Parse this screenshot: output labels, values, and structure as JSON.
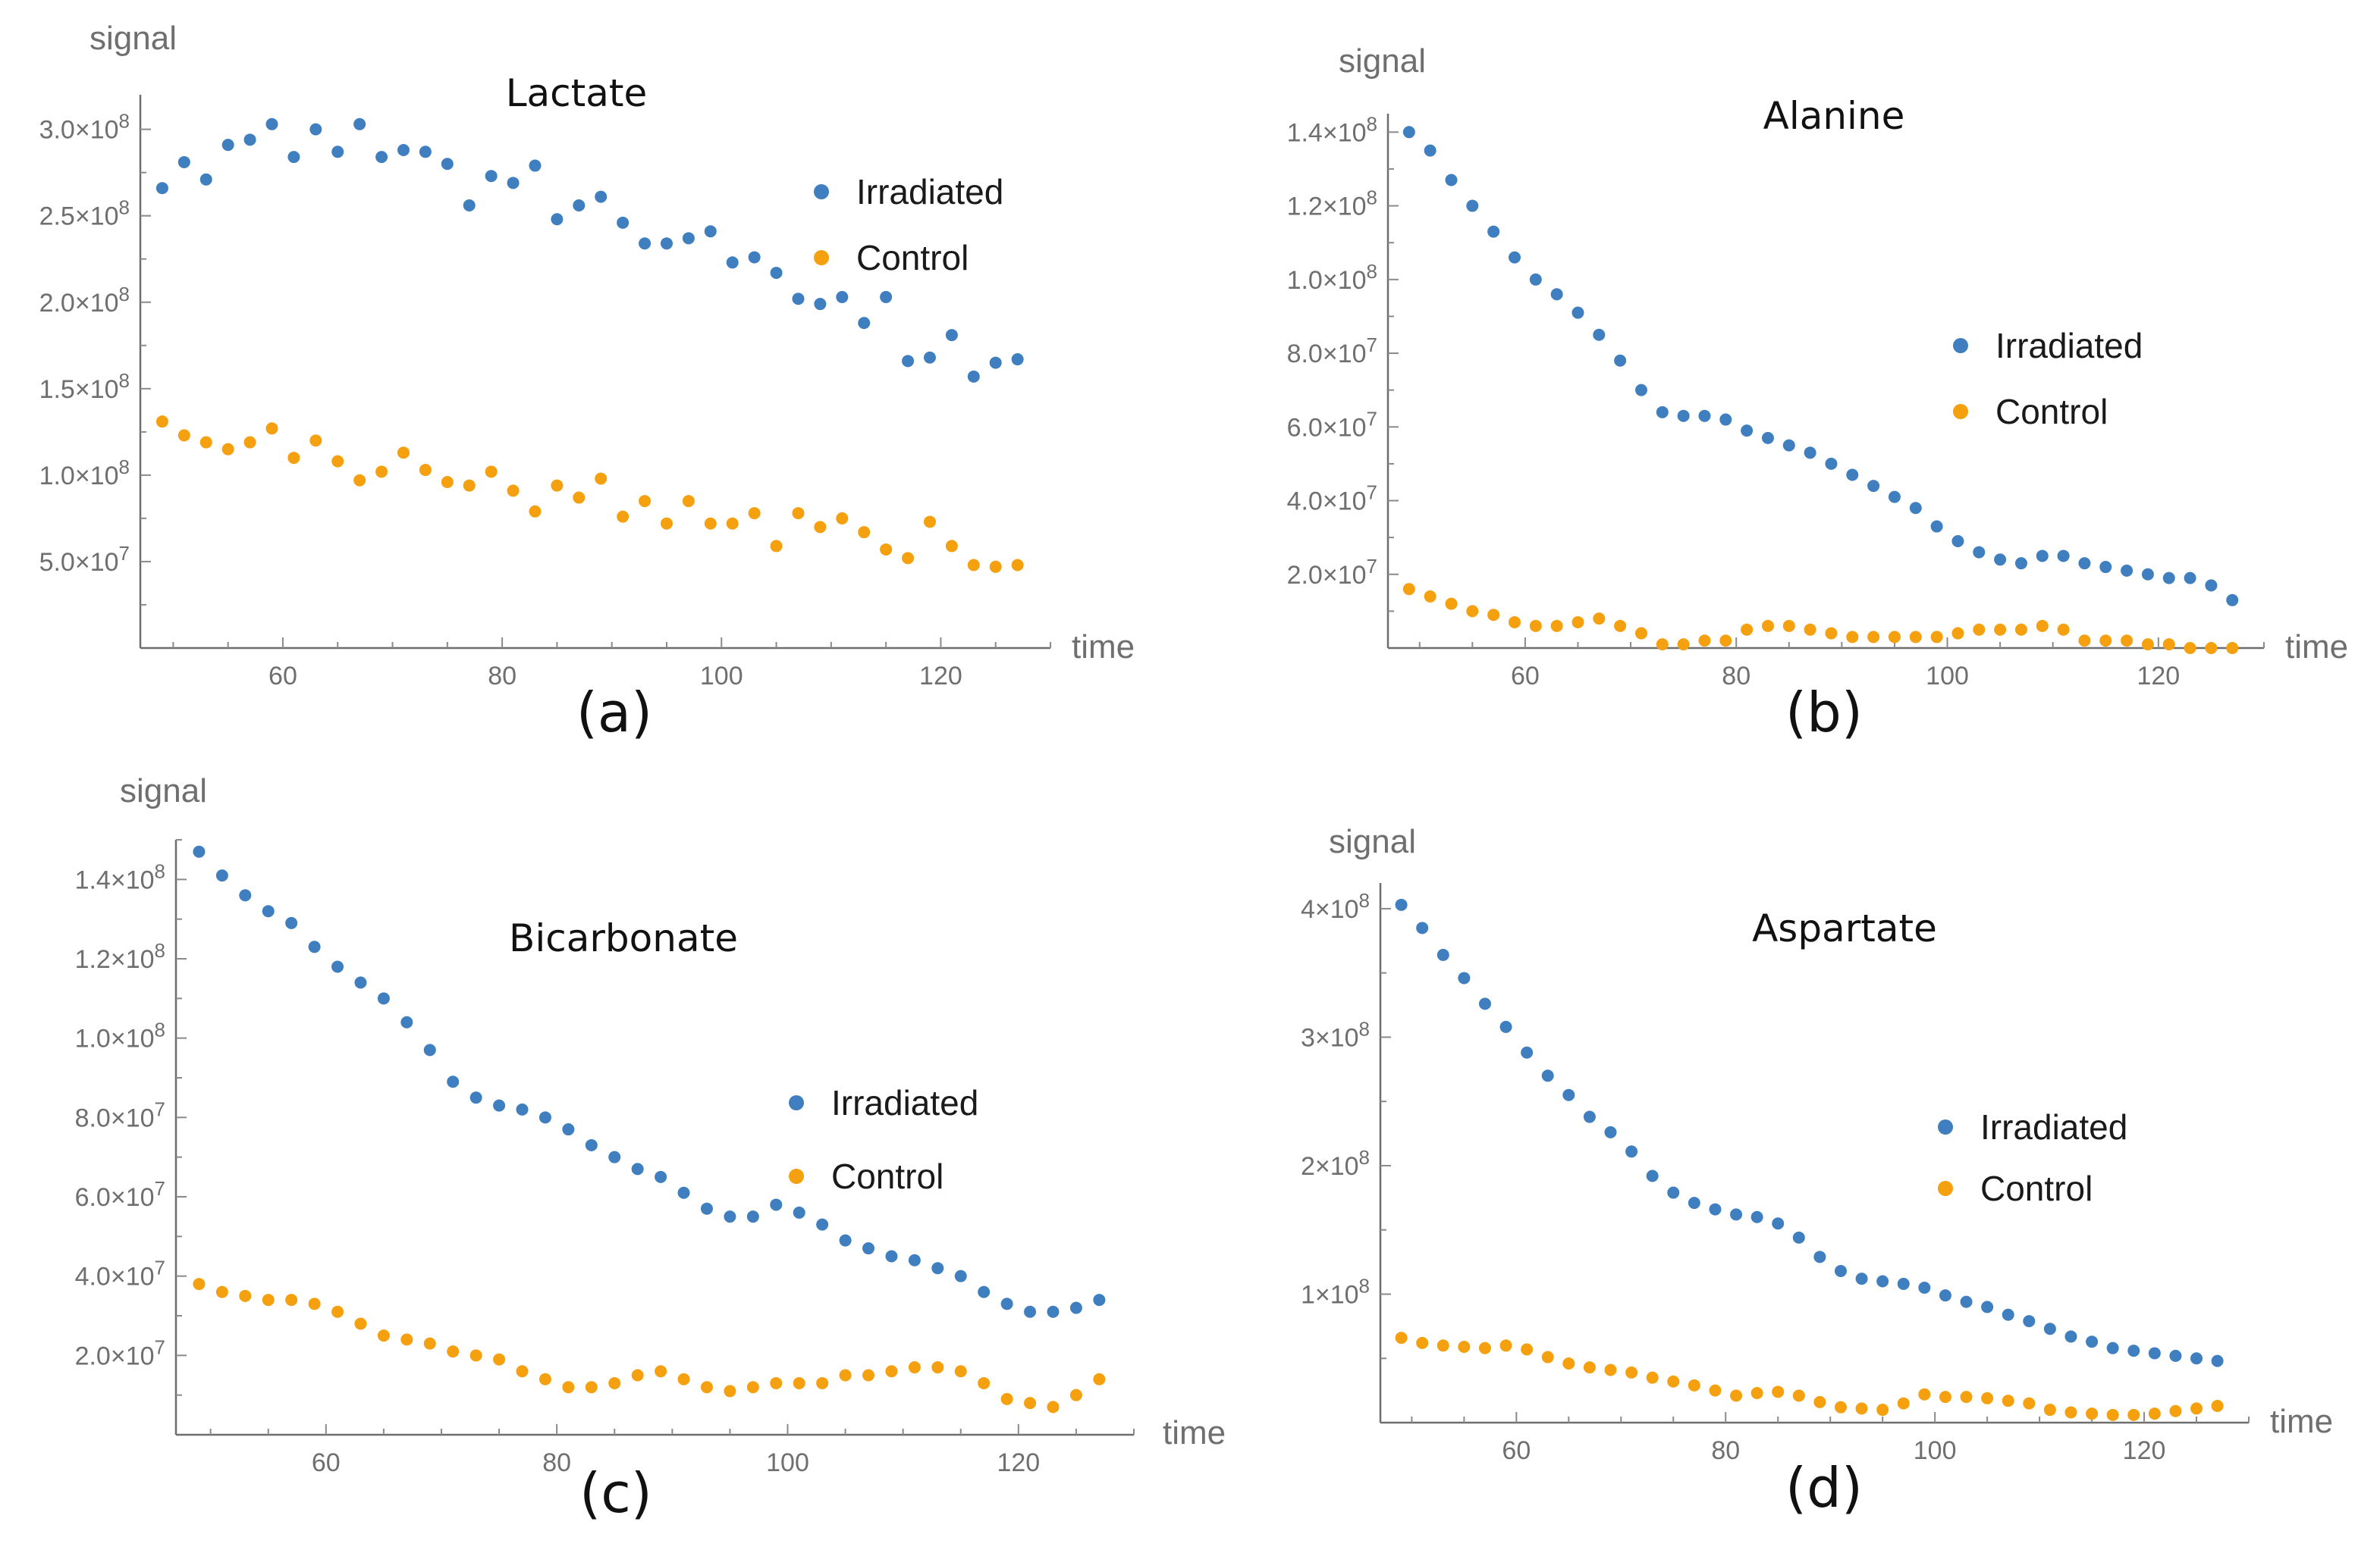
{
  "colors": {
    "irradiated": "#3f7fbf",
    "control": "#f5a00f",
    "axis": "#6e6e6e"
  },
  "chart_data": [
    {
      "type": "scatter",
      "title": "Lactate",
      "panel_label": "(a)",
      "xlabel": "time",
      "ylabel": "signal",
      "xlim": [
        47,
        130
      ],
      "ylim": [
        0,
        320000000.0
      ],
      "xticks": [
        60,
        80,
        100,
        120
      ],
      "xtick_labels": [
        "60",
        "80",
        "100",
        "120"
      ],
      "yticks": [
        50000000.0,
        100000000.0,
        150000000.0,
        200000000.0,
        250000000.0,
        300000000.0
      ],
      "ytick_labels": [
        {
          "mantissa": "5.0",
          "exponent": "7"
        },
        {
          "mantissa": "1.0",
          "exponent": "8"
        },
        {
          "mantissa": "1.5",
          "exponent": "8"
        },
        {
          "mantissa": "2.0",
          "exponent": "8"
        },
        {
          "mantissa": "2.5",
          "exponent": "8"
        },
        {
          "mantissa": "3.0",
          "exponent": "8"
        }
      ],
      "legend": [
        "Irradiated",
        "Control"
      ],
      "legend_placement": "right",
      "x": [
        49,
        51,
        53,
        55,
        57,
        59,
        61,
        63,
        65,
        67,
        69,
        71,
        73,
        75,
        77,
        79,
        81,
        83,
        85,
        87,
        89,
        91,
        93,
        95,
        97,
        99,
        101,
        103,
        105,
        107,
        109,
        111,
        113,
        115,
        117,
        119,
        121,
        123,
        125,
        127
      ],
      "series": [
        {
          "name": "Irradiated",
          "values": [
            266000000.0,
            281000000.0,
            271000000.0,
            291000000.0,
            294000000.0,
            303000000.0,
            284000000.0,
            300000000.0,
            287000000.0,
            303000000.0,
            284000000.0,
            288000000.0,
            287000000.0,
            280000000.0,
            256000000.0,
            273000000.0,
            269000000.0,
            279000000.0,
            248000000.0,
            256000000.0,
            261000000.0,
            246000000.0,
            234000000.0,
            234000000.0,
            237000000.0,
            241000000.0,
            223000000.0,
            226000000.0,
            217000000.0,
            202000000.0,
            199000000.0,
            203000000.0,
            188000000.0,
            203000000.0,
            166000000.0,
            168000000.0,
            181000000.0,
            157000000.0,
            165000000.0,
            167000000.0
          ]
        },
        {
          "name": "Control",
          "values": [
            131000000.0,
            123000000.0,
            119000000.0,
            115000000.0,
            119000000.0,
            127000000.0,
            110000000.0,
            120000000.0,
            108000000.0,
            97000000.0,
            102000000.0,
            113000000.0,
            103000000.0,
            96000000.0,
            94000000.0,
            102000000.0,
            91000000.0,
            79000000.0,
            94000000.0,
            87000000.0,
            98000000.0,
            76000000.0,
            85000000.0,
            72000000.0,
            85000000.0,
            72000000.0,
            72000000.0,
            78000000.0,
            59000000.0,
            78000000.0,
            70000000.0,
            75000000.0,
            67000000.0,
            57000000.0,
            52000000.0,
            73000000.0,
            59000000.0,
            48000000.0,
            47000000.0,
            48000000.0
          ]
        }
      ]
    },
    {
      "type": "scatter",
      "title": "Alanine",
      "panel_label": "(b)",
      "xlabel": "time",
      "ylabel": "signal",
      "xlim": [
        47,
        130
      ],
      "ylim": [
        0,
        145000000.0
      ],
      "xticks": [
        60,
        80,
        100,
        120
      ],
      "xtick_labels": [
        "60",
        "80",
        "100",
        "120"
      ],
      "yticks": [
        20000000.0,
        40000000.0,
        60000000.0,
        80000000.0,
        100000000.0,
        120000000.0,
        140000000.0
      ],
      "ytick_labels": [
        {
          "mantissa": "2.0",
          "exponent": "7"
        },
        {
          "mantissa": "4.0",
          "exponent": "7"
        },
        {
          "mantissa": "6.0",
          "exponent": "7"
        },
        {
          "mantissa": "8.0",
          "exponent": "7"
        },
        {
          "mantissa": "1.0",
          "exponent": "8"
        },
        {
          "mantissa": "1.2",
          "exponent": "8"
        },
        {
          "mantissa": "1.4",
          "exponent": "8"
        }
      ],
      "legend": [
        "Irradiated",
        "Control"
      ],
      "legend_placement": "right",
      "x": [
        49,
        51,
        53,
        55,
        57,
        59,
        61,
        63,
        65,
        67,
        69,
        71,
        73,
        75,
        77,
        79,
        81,
        83,
        85,
        87,
        89,
        91,
        93,
        95,
        97,
        99,
        101,
        103,
        105,
        107,
        109,
        111,
        113,
        115,
        117,
        119,
        121,
        123,
        125,
        127
      ],
      "series": [
        {
          "name": "Irradiated",
          "values": [
            140000000.0,
            135000000.0,
            127000000.0,
            120000000.0,
            113000000.0,
            106000000.0,
            100000000.0,
            96000000.0,
            91000000.0,
            85000000.0,
            78000000.0,
            70000000.0,
            64000000.0,
            63000000.0,
            63000000.0,
            62000000.0,
            59000000.0,
            57000000.0,
            55000000.0,
            53000000.0,
            50000000.0,
            47000000.0,
            44000000.0,
            41000000.0,
            38000000.0,
            33000000.0,
            29000000.0,
            26000000.0,
            24000000.0,
            23000000.0,
            25000000.0,
            25000000.0,
            23000000.0,
            22000000.0,
            21000000.0,
            20000000.0,
            19000000.0,
            19000000.0,
            17000000.0,
            13000000.0
          ]
        },
        {
          "name": "Control",
          "values": [
            16000000.0,
            14000000.0,
            12000000.0,
            10000000.0,
            9000000.0,
            7000000.0,
            6000000.0,
            6000000.0,
            7000000.0,
            8000000.0,
            6000000.0,
            4000000.0,
            1000000.0,
            1000000.0,
            2000000.0,
            2000000.0,
            5000000.0,
            6000000.0,
            6000000.0,
            5000000.0,
            4000000.0,
            3000000.0,
            3000000.0,
            3000000.0,
            3000000.0,
            3000000.0,
            4000000.0,
            5000000.0,
            5000000.0,
            5000000.0,
            6000000.0,
            5000000.0,
            2000000.0,
            2000000.0,
            2000000.0,
            1000000.0,
            1000000.0,
            0.0,
            0.0,
            0.0
          ]
        }
      ]
    },
    {
      "type": "scatter",
      "title": "Bicarbonate",
      "panel_label": "(c)",
      "xlabel": "time",
      "ylabel": "signal",
      "xlim": [
        47,
        130
      ],
      "ylim": [
        0,
        150000000.0
      ],
      "xticks": [
        60,
        80,
        100,
        120
      ],
      "xtick_labels": [
        "60",
        "80",
        "100",
        "120"
      ],
      "yticks": [
        20000000.0,
        40000000.0,
        60000000.0,
        80000000.0,
        100000000.0,
        120000000.0,
        140000000.0
      ],
      "ytick_labels": [
        {
          "mantissa": "2.0",
          "exponent": "7"
        },
        {
          "mantissa": "4.0",
          "exponent": "7"
        },
        {
          "mantissa": "6.0",
          "exponent": "7"
        },
        {
          "mantissa": "8.0",
          "exponent": "7"
        },
        {
          "mantissa": "1.0",
          "exponent": "8"
        },
        {
          "mantissa": "1.2",
          "exponent": "8"
        },
        {
          "mantissa": "1.4",
          "exponent": "8"
        }
      ],
      "legend": [
        "Irradiated",
        "Control"
      ],
      "legend_placement": "right",
      "x": [
        49,
        51,
        53,
        55,
        57,
        59,
        61,
        63,
        65,
        67,
        69,
        71,
        73,
        75,
        77,
        79,
        81,
        83,
        85,
        87,
        89,
        91,
        93,
        95,
        97,
        99,
        101,
        103,
        105,
        107,
        109,
        111,
        113,
        115,
        117,
        119,
        121,
        123,
        125,
        127
      ],
      "series": [
        {
          "name": "Irradiated",
          "values": [
            147000000.0,
            141000000.0,
            136000000.0,
            132000000.0,
            129000000.0,
            123000000.0,
            118000000.0,
            114000000.0,
            110000000.0,
            104000000.0,
            97000000.0,
            89000000.0,
            85000000.0,
            83000000.0,
            82000000.0,
            80000000.0,
            77000000.0,
            73000000.0,
            70000000.0,
            67000000.0,
            65000000.0,
            61000000.0,
            57000000.0,
            55000000.0,
            55000000.0,
            58000000.0,
            56000000.0,
            53000000.0,
            49000000.0,
            47000000.0,
            45000000.0,
            44000000.0,
            42000000.0,
            40000000.0,
            36000000.0,
            33000000.0,
            31000000.0,
            31000000.0,
            32000000.0,
            34000000.0
          ]
        },
        {
          "name": "Control",
          "values": [
            38000000.0,
            36000000.0,
            35000000.0,
            34000000.0,
            34000000.0,
            33000000.0,
            31000000.0,
            28000000.0,
            25000000.0,
            24000000.0,
            23000000.0,
            21000000.0,
            20000000.0,
            19000000.0,
            16000000.0,
            14000000.0,
            12000000.0,
            12000000.0,
            13000000.0,
            15000000.0,
            16000000.0,
            14000000.0,
            12000000.0,
            11000000.0,
            12000000.0,
            13000000.0,
            13000000.0,
            13000000.0,
            15000000.0,
            15000000.0,
            16000000.0,
            17000000.0,
            17000000.0,
            16000000.0,
            13000000.0,
            9000000.0,
            8000000.0,
            7000000.0,
            10000000.0,
            14000000.0
          ]
        }
      ]
    },
    {
      "type": "scatter",
      "title": "Aspartate",
      "panel_label": "(d)",
      "xlabel": "time",
      "ylabel": "signal",
      "xlim": [
        47,
        130
      ],
      "ylim": [
        0,
        420000000.0
      ],
      "xticks": [
        60,
        80,
        100,
        120
      ],
      "xtick_labels": [
        "60",
        "80",
        "100",
        "120"
      ],
      "yticks": [
        100000000.0,
        200000000.0,
        300000000.0,
        400000000.0
      ],
      "ytick_labels": [
        {
          "mantissa": "1",
          "exponent": "8"
        },
        {
          "mantissa": "2",
          "exponent": "8"
        },
        {
          "mantissa": "3",
          "exponent": "8"
        },
        {
          "mantissa": "4",
          "exponent": "8"
        }
      ],
      "legend": [
        "Irradiated",
        "Control"
      ],
      "legend_placement": "right",
      "x": [
        49,
        51,
        53,
        55,
        57,
        59,
        61,
        63,
        65,
        67,
        69,
        71,
        73,
        75,
        77,
        79,
        81,
        83,
        85,
        87,
        89,
        91,
        93,
        95,
        97,
        99,
        101,
        103,
        105,
        107,
        109,
        111,
        113,
        115,
        117,
        119,
        121,
        123,
        125,
        127
      ],
      "series": [
        {
          "name": "Irradiated",
          "values": [
            403000000.0,
            385000000.0,
            364000000.0,
            346000000.0,
            326000000.0,
            308000000.0,
            288000000.0,
            270000000.0,
            255000000.0,
            238000000.0,
            226000000.0,
            211000000.0,
            192000000.0,
            179000000.0,
            171000000.0,
            166000000.0,
            162000000.0,
            160000000.0,
            155000000.0,
            144000000.0,
            129000000.0,
            118000000.0,
            112000000.0,
            110000000.0,
            108000000.0,
            105000000.0,
            99000000.0,
            94000000.0,
            90000000.0,
            84000000.0,
            79000000.0,
            73000000.0,
            67000000.0,
            63000000.0,
            58000000.0,
            56000000.0,
            54000000.0,
            52000000.0,
            50000000.0,
            48000000.0
          ]
        },
        {
          "name": "Control",
          "values": [
            66000000.0,
            62000000.0,
            60000000.0,
            59000000.0,
            58000000.0,
            60000000.0,
            57000000.0,
            51000000.0,
            46000000.0,
            43000000.0,
            41000000.0,
            39000000.0,
            35000000.0,
            32000000.0,
            29000000.0,
            25000000.0,
            21000000.0,
            23000000.0,
            24000000.0,
            21000000.0,
            16000000.0,
            12000000.0,
            11000000.0,
            10000000.0,
            15000000.0,
            22000000.0,
            20000000.0,
            20000000.0,
            19000000.0,
            17000000.0,
            15000000.0,
            10000000.0,
            8000000.0,
            7000000.0,
            6000000.0,
            6000000.0,
            7000000.0,
            9000000.0,
            11000000.0,
            13000000.0
          ]
        }
      ]
    }
  ]
}
